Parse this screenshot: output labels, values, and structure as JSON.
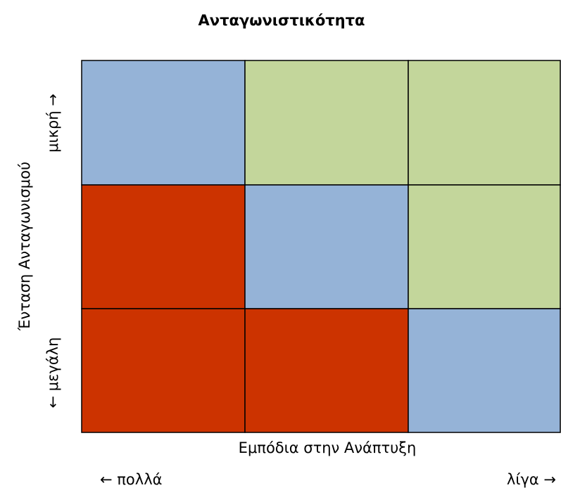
{
  "title": "Ανταγωνιστικότητα",
  "y_axis": {
    "label": "Ένταση Ανταγωνισμού",
    "high": "μικρή →",
    "low": "← μεγάλη"
  },
  "x_axis": {
    "label": "Εμπόδια στην Ανάπτυξη",
    "left": "← πολλά",
    "right": "λίγα →"
  }
}
